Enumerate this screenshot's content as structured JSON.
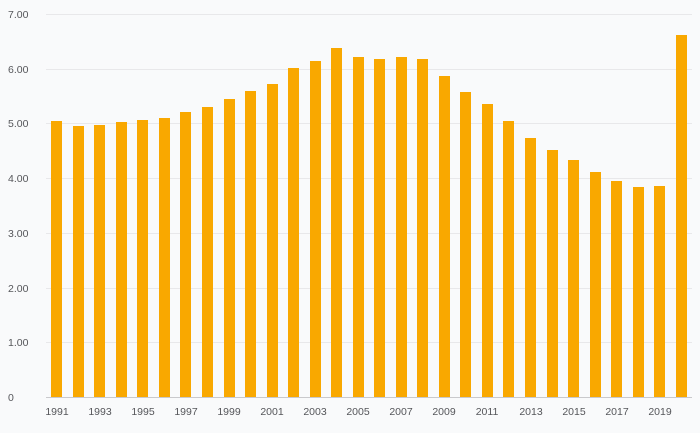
{
  "chart_data": {
    "type": "bar",
    "title": "",
    "xlabel": "",
    "ylabel": "",
    "categories": [
      1991,
      1992,
      1993,
      1994,
      1995,
      1996,
      1997,
      1998,
      1999,
      2000,
      2001,
      2002,
      2003,
      2004,
      2005,
      2006,
      2007,
      2008,
      2009,
      2010,
      2011,
      2012,
      2013,
      2014,
      2015,
      2016,
      2017,
      2018,
      2019,
      2020
    ],
    "values": [
      5.05,
      4.95,
      4.98,
      5.02,
      5.07,
      5.1,
      5.2,
      5.3,
      5.45,
      5.6,
      5.72,
      6.02,
      6.15,
      6.38,
      6.22,
      6.18,
      6.22,
      6.17,
      5.87,
      5.57,
      5.35,
      5.05,
      4.73,
      4.52,
      4.33,
      4.12,
      3.95,
      3.83,
      3.86,
      6.62
    ],
    "ylim": [
      0,
      7
    ],
    "y_tick_values": [
      0,
      1,
      2,
      3,
      4,
      5,
      6,
      7
    ],
    "y_tick_labels": [
      "0",
      "1.00",
      "2.00",
      "3.00",
      "4.00",
      "5.00",
      "6.00",
      "7.00"
    ],
    "x_tick_labels": [
      "1991",
      "1993",
      "1995",
      "1997",
      "1999",
      "2001",
      "2003",
      "2005",
      "2007",
      "2009",
      "2011",
      "2013",
      "2015",
      "2017",
      "2019"
    ],
    "grid": true,
    "legend": "none",
    "bar_color": "#F9A800",
    "background_color": "#f9fafb",
    "axis_label_color": "#55565a",
    "gridline_color": "#e8e8ea",
    "baseline_color": "#c9c9cc"
  }
}
